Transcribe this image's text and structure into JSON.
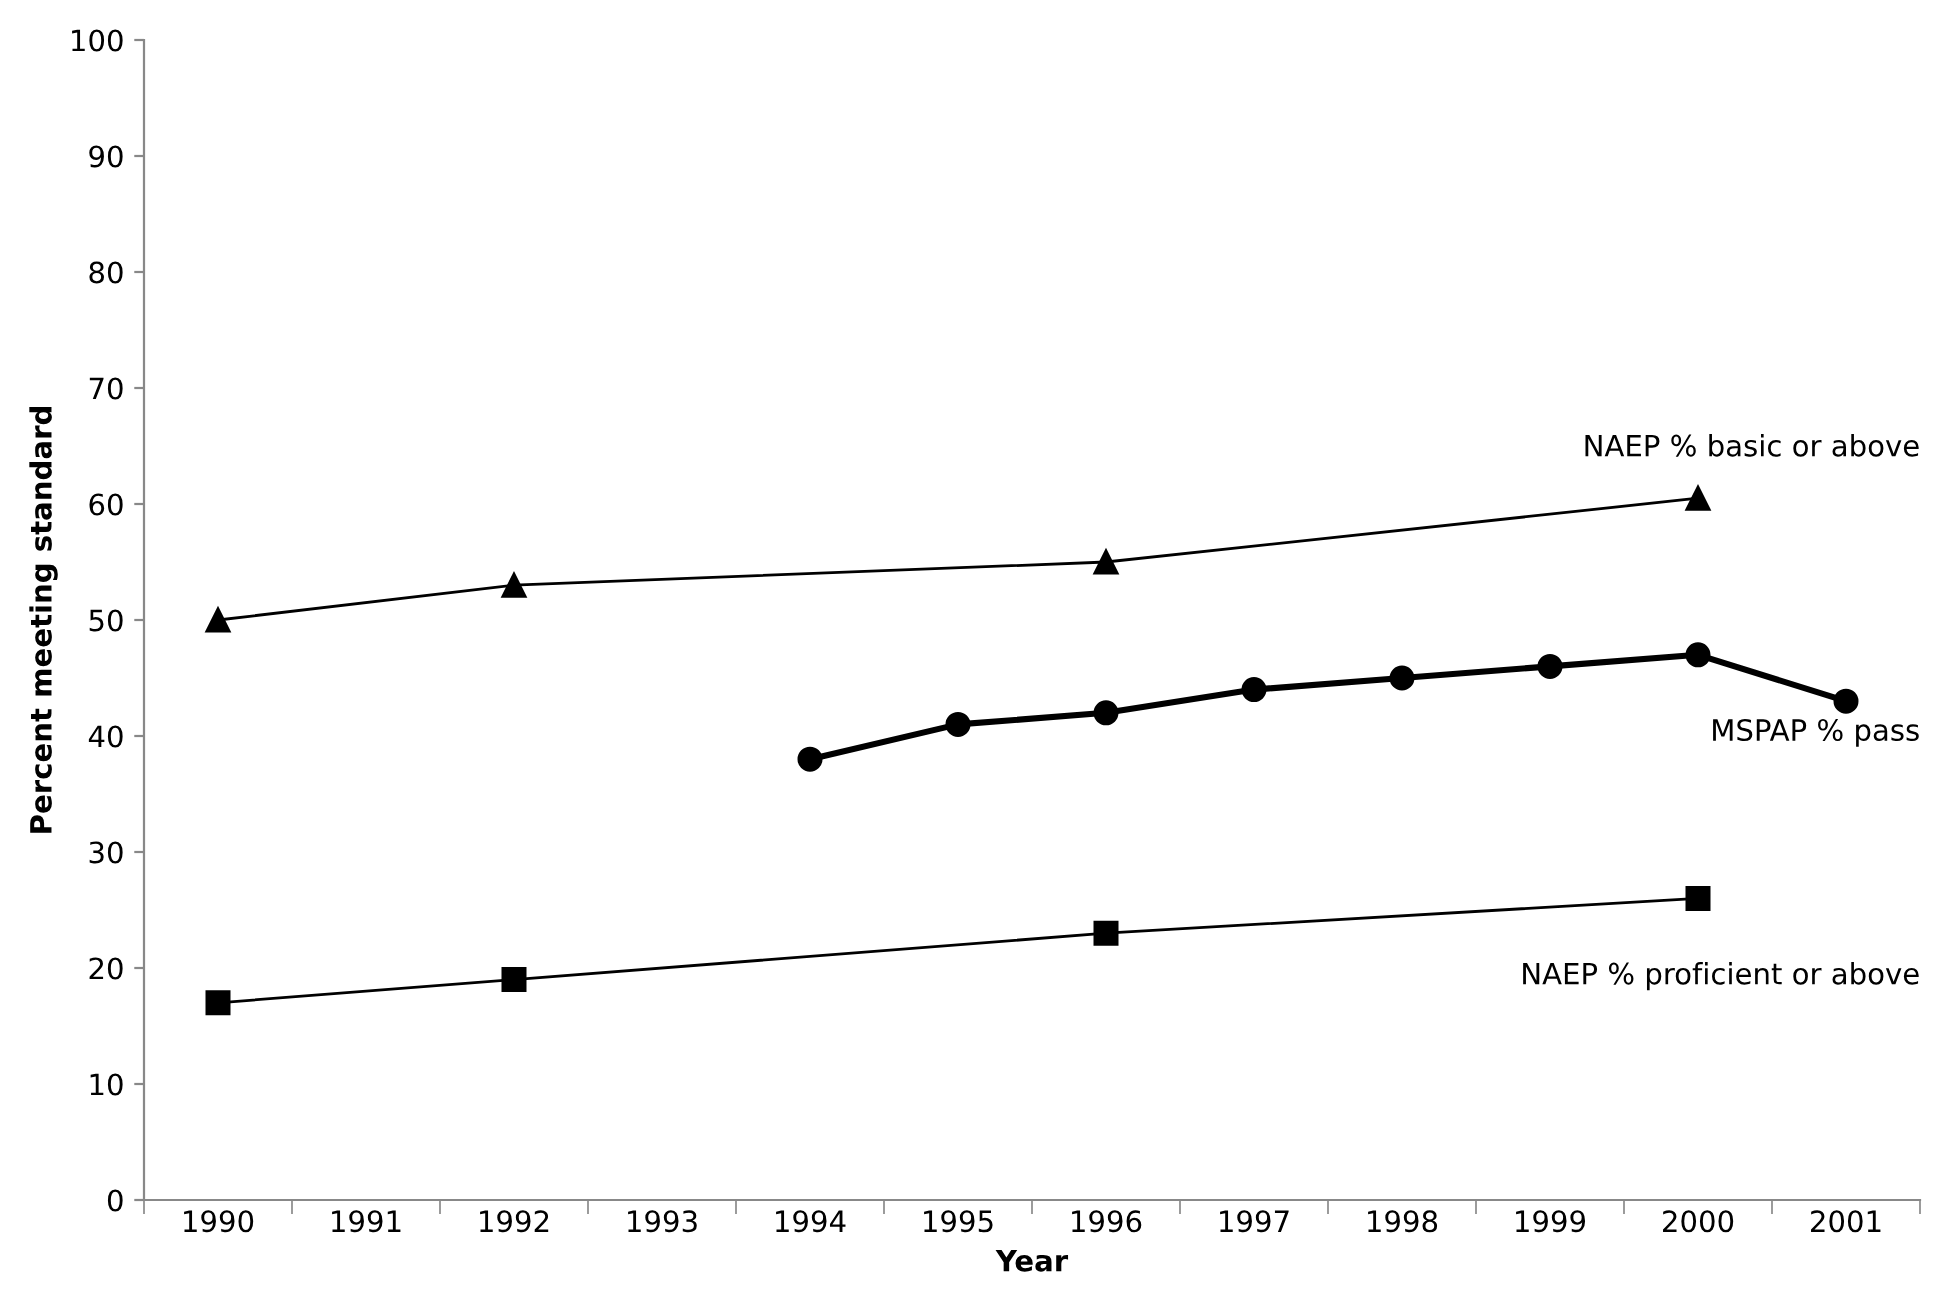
{
  "chart_data": {
    "type": "line",
    "xlabel": "Year",
    "ylabel": "Percent meeting standard",
    "categories": [
      "1990",
      "1991",
      "1992",
      "1993",
      "1994",
      "1995",
      "1996",
      "1997",
      "1998",
      "1999",
      "2000",
      "2001"
    ],
    "series": [
      {
        "name": "NAEP % basic or above",
        "color": "#000000",
        "marker": "triangle",
        "values": [
          50,
          null,
          53,
          null,
          null,
          null,
          55,
          null,
          null,
          null,
          60.5,
          null
        ]
      },
      {
        "name": "MSPAP % pass",
        "color": "#000000",
        "marker": "circle",
        "values": [
          null,
          null,
          null,
          null,
          38,
          41,
          42,
          44,
          45,
          46,
          47,
          43
        ]
      },
      {
        "name": "NAEP % proficient or above",
        "color": "#000000",
        "marker": "square",
        "values": [
          17,
          null,
          19,
          null,
          null,
          null,
          23,
          null,
          null,
          null,
          26,
          null
        ]
      }
    ],
    "ylim": [
      0,
      100
    ],
    "yticks": [
      0,
      10,
      20,
      30,
      40,
      50,
      60,
      70,
      80,
      90,
      100
    ],
    "grid": false,
    "legend": false,
    "line_style": "solid"
  }
}
